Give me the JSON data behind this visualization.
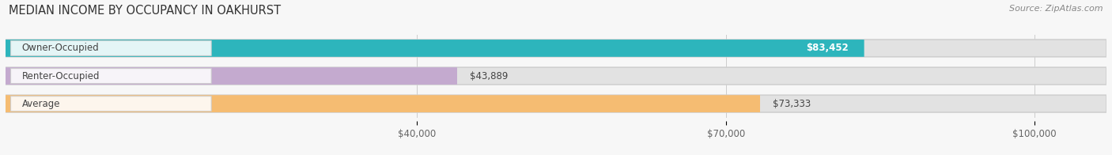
{
  "title": "MEDIAN INCOME BY OCCUPANCY IN OAKHURST",
  "source": "Source: ZipAtlas.com",
  "categories": [
    "Owner-Occupied",
    "Renter-Occupied",
    "Average"
  ],
  "values": [
    83452,
    43889,
    73333
  ],
  "labels": [
    "$83,452",
    "$43,889",
    "$73,333"
  ],
  "colors": [
    "#2db5bc",
    "#c4aacf",
    "#f5bc72"
  ],
  "bar_bg_color": "#e2e2e2",
  "xlim": [
    0,
    107000
  ],
  "xticks": [
    40000,
    70000,
    100000
  ],
  "xtick_labels": [
    "$40,000",
    "$70,000",
    "$100,000"
  ],
  "title_fontsize": 10.5,
  "source_fontsize": 8,
  "label_fontsize": 8.5,
  "tick_fontsize": 8.5,
  "bar_height": 0.62,
  "bg_color": "#f7f7f7",
  "label_inside_threshold": 70000,
  "value_label_inside": [
    true,
    false,
    false
  ]
}
